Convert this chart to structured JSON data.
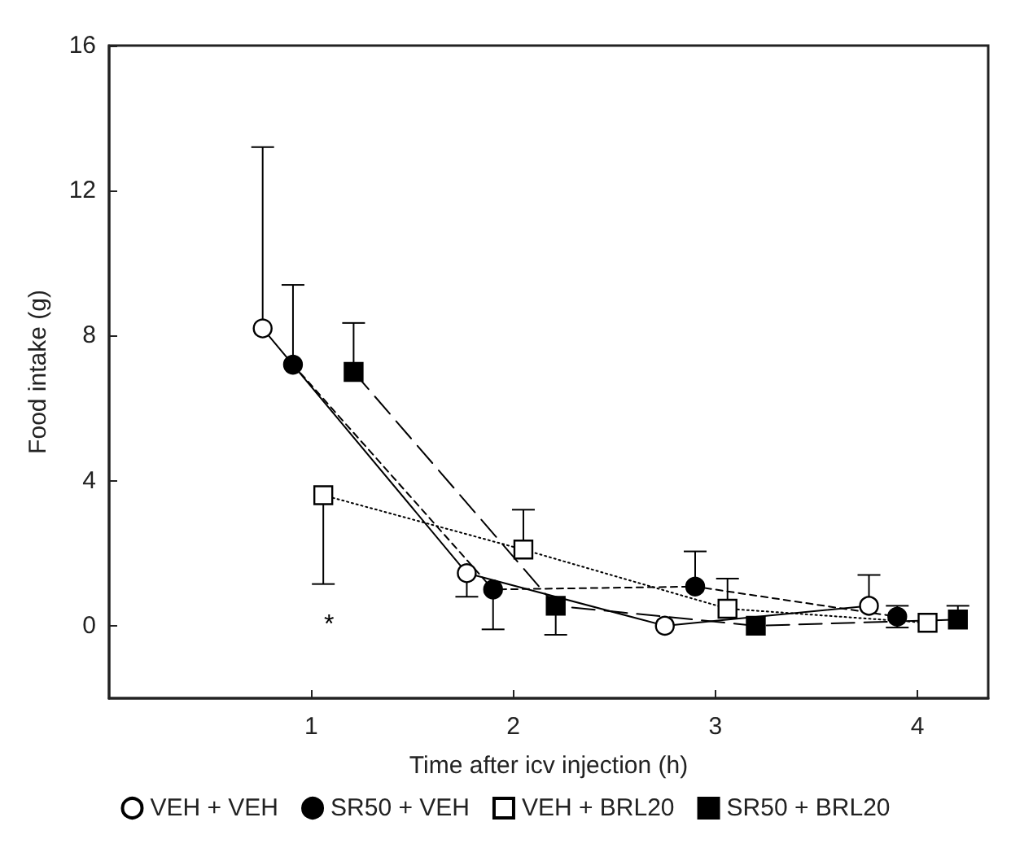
{
  "chart_data": {
    "type": "line",
    "xlabel": "Time after icv injection (h)",
    "ylabel": "Food intake (g)",
    "xlim": [
      0,
      4.35
    ],
    "ylim": [
      -2,
      16
    ],
    "xticks": [
      1,
      2,
      3,
      4
    ],
    "yticks": [
      0,
      4,
      8,
      12,
      16
    ],
    "grid": false,
    "legend": "bottom",
    "annotations": [
      "*"
    ],
    "series": [
      {
        "name": "VEH + VEH",
        "color": "#ffffff",
        "marker": "circle",
        "line_style": "solid",
        "x": [
          0.76,
          1.77,
          2.75,
          3.76
        ],
        "values": [
          8.2,
          1.45,
          0,
          0.55
        ],
        "errors": [
          [
            8.2,
            13.2
          ],
          [
            0.8,
            1.45
          ],
          null,
          [
            0.55,
            1.4
          ]
        ]
      },
      {
        "name": "SR50 + VEH",
        "color": "#000000",
        "marker": "circle",
        "line_style": "dashed",
        "x": [
          0.91,
          1.9,
          2.9,
          3.9
        ],
        "values": [
          7.2,
          1.0,
          1.08,
          0.25
        ],
        "errors": [
          [
            7.2,
            9.4
          ],
          [
            -0.1,
            1.0
          ],
          [
            1.08,
            2.05
          ],
          0.3
        ]
      },
      {
        "name": "VEH + BRL20",
        "color": "#ffffff",
        "marker": "square",
        "line_style": "dotted",
        "x": [
          1.06,
          2.05,
          3.06,
          4.05
        ],
        "values": [
          3.6,
          2.1,
          0.47,
          0.08
        ],
        "errors": [
          [
            1.15,
            3.6
          ],
          [
            2.1,
            3.2
          ],
          [
            0.47,
            1.3
          ],
          null
        ]
      },
      {
        "name": "SR50 + BRL20",
        "color": "#000000",
        "marker": "square",
        "line_style": "longdash",
        "x": [
          1.21,
          2.21,
          3.2,
          4.2
        ],
        "values": [
          7.0,
          0.55,
          0.0,
          0.17
        ],
        "errors": [
          [
            7.0,
            8.35
          ],
          [
            -0.25,
            0.55
          ],
          null,
          [
            0.17,
            0.55
          ]
        ]
      }
    ]
  }
}
